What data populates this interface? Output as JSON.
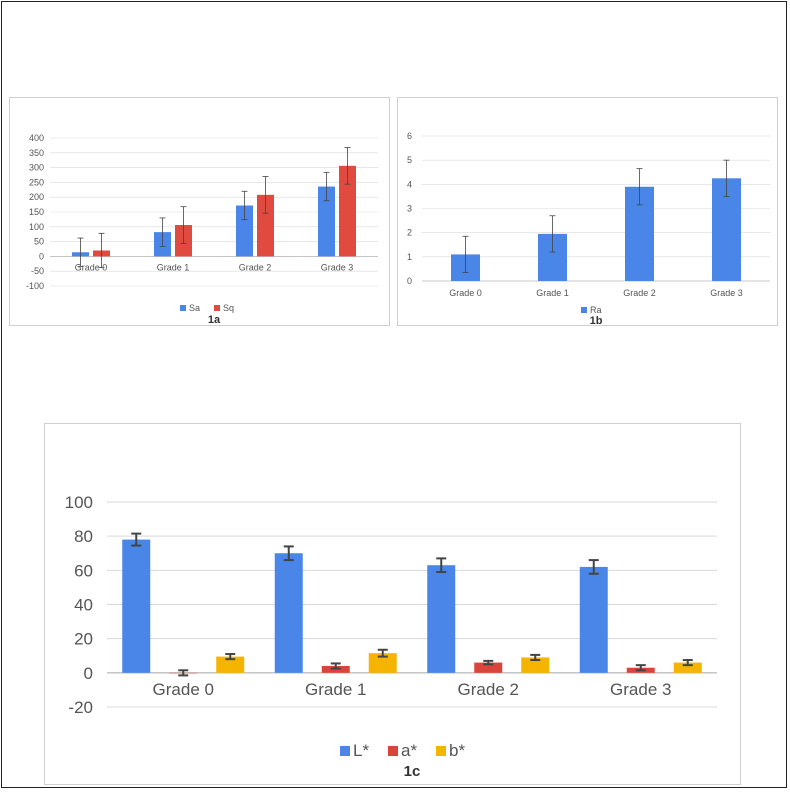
{
  "chart_data": [
    {
      "id": "1a",
      "type": "bar",
      "caption": "1a",
      "categories": [
        "Grade 0",
        "Grade 1",
        "Grade 2",
        "Grade 3"
      ],
      "series": [
        {
          "name": "Sa",
          "color": "#4a86e8",
          "values": [
            14,
            82,
            172,
            236
          ],
          "errors": [
            48,
            48,
            48,
            48
          ]
        },
        {
          "name": "Sq",
          "color": "#e04a3f",
          "values": [
            20,
            106,
            208,
            306
          ],
          "errors": [
            58,
            62,
            62,
            62
          ]
        }
      ],
      "ylim": [
        -100,
        400
      ],
      "yticks": [
        -100,
        -50,
        0,
        50,
        100,
        150,
        200,
        250,
        300,
        350,
        400
      ],
      "grid": true,
      "legend": "bottom"
    },
    {
      "id": "1b",
      "type": "bar",
      "caption": "1b",
      "categories": [
        "Grade 0",
        "Grade 1",
        "Grade 2",
        "Grade 3"
      ],
      "series": [
        {
          "name": "Ra",
          "color": "#4a86e8",
          "values": [
            1.1,
            1.95,
            3.9,
            4.25
          ],
          "errors": [
            0.75,
            0.75,
            0.75,
            0.75
          ]
        }
      ],
      "ylim": [
        0,
        6
      ],
      "yticks": [
        0,
        1,
        2,
        3,
        4,
        5,
        6
      ],
      "grid": true,
      "legend": "bottom"
    },
    {
      "id": "1c",
      "type": "bar",
      "caption": "1c",
      "categories": [
        "Grade 0",
        "Grade 1",
        "Grade 2",
        "Grade 3"
      ],
      "series": [
        {
          "name": "L*",
          "color": "#4a86e8",
          "values": [
            78,
            70,
            63,
            62
          ],
          "errors": [
            3.5,
            4,
            4,
            4
          ]
        },
        {
          "name": "a*",
          "color": "#d9453b",
          "values": [
            0,
            4,
            6,
            3
          ],
          "errors": [
            1.5,
            1.5,
            1,
            1.5
          ]
        },
        {
          "name": "b*",
          "color": "#f4b400",
          "values": [
            9.5,
            11.5,
            9,
            6
          ],
          "errors": [
            1.5,
            2,
            1.5,
            1.5
          ]
        }
      ],
      "ylim": [
        -20,
        100
      ],
      "yticks": [
        -20,
        0,
        20,
        40,
        60,
        80,
        100
      ],
      "grid": true,
      "legend": "bottom"
    }
  ]
}
